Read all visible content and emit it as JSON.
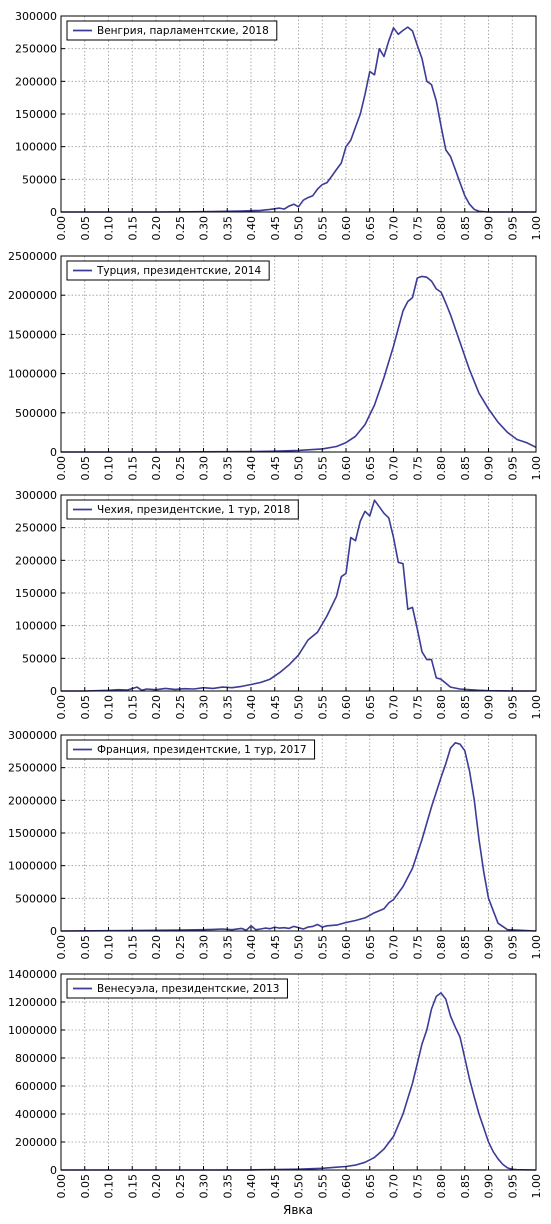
{
  "figure": {
    "xlabel": "Явка",
    "line_color": "#3b3b98"
  },
  "chart_data": [
    {
      "type": "line",
      "legend": "Венгрия, парламентские, 2018",
      "xlim": [
        0,
        1
      ],
      "ylim": [
        0,
        300000
      ],
      "x_ticks": [
        "0.00",
        "0.05",
        "0.10",
        "0.15",
        "0.20",
        "0.25",
        "0.30",
        "0.35",
        "0.40",
        "0.45",
        "0.50",
        "0.55",
        "0.60",
        "0.65",
        "0.70",
        "0.75",
        "0.80",
        "0.85",
        "0.90",
        "0.95",
        "1.00"
      ],
      "y_ticks": [
        "0",
        "50000",
        "100000",
        "150000",
        "200000",
        "250000",
        "300000"
      ],
      "grid": true,
      "legend_position": "top-left",
      "x": [
        0,
        0.1,
        0.2,
        0.3,
        0.35,
        0.38,
        0.4,
        0.42,
        0.44,
        0.46,
        0.47,
        0.48,
        0.49,
        0.5,
        0.51,
        0.52,
        0.53,
        0.54,
        0.55,
        0.56,
        0.57,
        0.58,
        0.59,
        0.6,
        0.61,
        0.62,
        0.63,
        0.64,
        0.65,
        0.66,
        0.67,
        0.68,
        0.69,
        0.7,
        0.71,
        0.72,
        0.73,
        0.74,
        0.75,
        0.76,
        0.77,
        0.78,
        0.79,
        0.8,
        0.81,
        0.82,
        0.83,
        0.84,
        0.85,
        0.86,
        0.87,
        0.88,
        0.9,
        1.0
      ],
      "y": [
        0,
        0,
        0,
        500,
        1000,
        1500,
        2000,
        2500,
        4000,
        6000,
        4500,
        9000,
        12000,
        8000,
        18000,
        22000,
        25000,
        35000,
        42000,
        45000,
        55000,
        65000,
        75000,
        100000,
        110000,
        130000,
        150000,
        180000,
        215000,
        210000,
        250000,
        238000,
        262000,
        282000,
        272000,
        278000,
        283000,
        277000,
        255000,
        235000,
        200000,
        195000,
        170000,
        132000,
        95000,
        85000,
        65000,
        45000,
        25000,
        12000,
        4000,
        1000,
        0,
        0
      ]
    },
    {
      "type": "line",
      "legend": "Турция, президентские, 2014",
      "xlim": [
        0,
        1
      ],
      "ylim": [
        0,
        2500000
      ],
      "x_ticks": [
        "0.00",
        "0.05",
        "0.10",
        "0.15",
        "0.20",
        "0.25",
        "0.30",
        "0.35",
        "0.40",
        "0.45",
        "0.50",
        "0.55",
        "0.60",
        "0.65",
        "0.70",
        "0.75",
        "0.80",
        "0.85",
        "0.90",
        "0.95",
        "1.00"
      ],
      "y_ticks": [
        "0",
        "500000",
        "1000000",
        "1500000",
        "2000000",
        "2500000"
      ],
      "grid": true,
      "legend_position": "top-left",
      "x": [
        0,
        0.2,
        0.4,
        0.45,
        0.5,
        0.55,
        0.58,
        0.6,
        0.62,
        0.64,
        0.66,
        0.68,
        0.7,
        0.72,
        0.73,
        0.74,
        0.75,
        0.76,
        0.77,
        0.78,
        0.79,
        0.8,
        0.81,
        0.82,
        0.84,
        0.86,
        0.88,
        0.9,
        0.92,
        0.94,
        0.96,
        0.98,
        1.0
      ],
      "y": [
        0,
        0,
        5000,
        10000,
        20000,
        40000,
        70000,
        120000,
        200000,
        350000,
        600000,
        950000,
        1350000,
        1800000,
        1920000,
        1970000,
        2220000,
        2240000,
        2230000,
        2180000,
        2080000,
        2040000,
        1900000,
        1750000,
        1400000,
        1050000,
        750000,
        550000,
        380000,
        250000,
        160000,
        120000,
        60000
      ]
    },
    {
      "type": "line",
      "legend": "Чехия, президентские, 1 тур, 2018",
      "xlim": [
        0,
        1
      ],
      "ylim": [
        0,
        300000
      ],
      "x_ticks": [
        "0.00",
        "0.05",
        "0.10",
        "0.15",
        "0.20",
        "0.25",
        "0.30",
        "0.35",
        "0.40",
        "0.45",
        "0.50",
        "0.55",
        "0.60",
        "0.65",
        "0.70",
        "0.75",
        "0.80",
        "0.85",
        "0.90",
        "0.95",
        "1.00"
      ],
      "y_ticks": [
        "0",
        "50000",
        "100000",
        "150000",
        "200000",
        "250000",
        "300000"
      ],
      "grid": true,
      "legend_position": "top-left",
      "x": [
        0,
        0.05,
        0.1,
        0.12,
        0.14,
        0.16,
        0.17,
        0.18,
        0.2,
        0.22,
        0.24,
        0.26,
        0.28,
        0.3,
        0.32,
        0.34,
        0.36,
        0.38,
        0.4,
        0.42,
        0.44,
        0.46,
        0.48,
        0.5,
        0.52,
        0.54,
        0.56,
        0.58,
        0.59,
        0.6,
        0.61,
        0.62,
        0.63,
        0.64,
        0.65,
        0.66,
        0.67,
        0.68,
        0.69,
        0.7,
        0.71,
        0.72,
        0.73,
        0.74,
        0.75,
        0.76,
        0.77,
        0.78,
        0.79,
        0.8,
        0.82,
        0.84,
        0.86,
        0.88,
        0.9,
        0.95,
        1.0
      ],
      "y": [
        0,
        0,
        1000,
        2000,
        1500,
        6000,
        1000,
        3000,
        2000,
        4000,
        2500,
        3500,
        3000,
        5000,
        4000,
        6000,
        5000,
        7000,
        10000,
        13000,
        18000,
        28000,
        40000,
        55000,
        78000,
        90000,
        115000,
        145000,
        175000,
        180000,
        235000,
        230000,
        260000,
        275000,
        268000,
        292000,
        282000,
        272000,
        265000,
        235000,
        197000,
        195000,
        125000,
        128000,
        95000,
        60000,
        48000,
        48000,
        20000,
        18000,
        6000,
        3000,
        2000,
        1000,
        500,
        0,
        0
      ]
    },
    {
      "type": "line",
      "legend": "Франция, президентские, 1 тур, 2017",
      "xlim": [
        0,
        1
      ],
      "ylim": [
        0,
        3000000
      ],
      "x_ticks": [
        "0.00",
        "0.05",
        "0.10",
        "0.15",
        "0.20",
        "0.25",
        "0.30",
        "0.35",
        "0.40",
        "0.45",
        "0.50",
        "0.55",
        "0.60",
        "0.65",
        "0.70",
        "0.75",
        "0.80",
        "0.85",
        "0.90",
        "0.95",
        "1.00"
      ],
      "y_ticks": [
        "0",
        "500000",
        "1000000",
        "1500000",
        "2000000",
        "2500000",
        "3000000"
      ],
      "grid": true,
      "legend_position": "top-left",
      "x": [
        0,
        0.1,
        0.2,
        0.25,
        0.3,
        0.32,
        0.34,
        0.36,
        0.38,
        0.39,
        0.4,
        0.41,
        0.42,
        0.43,
        0.44,
        0.45,
        0.46,
        0.47,
        0.48,
        0.49,
        0.5,
        0.51,
        0.52,
        0.53,
        0.54,
        0.55,
        0.56,
        0.58,
        0.6,
        0.62,
        0.64,
        0.66,
        0.68,
        0.69,
        0.7,
        0.72,
        0.74,
        0.76,
        0.78,
        0.8,
        0.81,
        0.82,
        0.83,
        0.84,
        0.85,
        0.86,
        0.87,
        0.88,
        0.89,
        0.9,
        0.92,
        0.94,
        1.0
      ],
      "y": [
        0,
        5000,
        10000,
        15000,
        20000,
        25000,
        30000,
        20000,
        40000,
        10000,
        80000,
        20000,
        30000,
        45000,
        35000,
        60000,
        45000,
        50000,
        40000,
        70000,
        50000,
        30000,
        60000,
        70000,
        100000,
        60000,
        80000,
        90000,
        130000,
        160000,
        200000,
        280000,
        340000,
        430000,
        480000,
        680000,
        960000,
        1400000,
        1900000,
        2350000,
        2560000,
        2800000,
        2880000,
        2860000,
        2760000,
        2450000,
        2000000,
        1400000,
        900000,
        500000,
        120000,
        20000,
        0
      ]
    },
    {
      "type": "line",
      "legend": "Венесуэла, президентские, 2013",
      "xlim": [
        0,
        1
      ],
      "ylim": [
        0,
        1400000
      ],
      "x_ticks": [
        "0.00",
        "0.05",
        "0.10",
        "0.15",
        "0.20",
        "0.25",
        "0.30",
        "0.35",
        "0.40",
        "0.45",
        "0.50",
        "0.55",
        "0.60",
        "0.65",
        "0.70",
        "0.75",
        "0.80",
        "0.85",
        "0.90",
        "0.95",
        "1.00"
      ],
      "y_ticks": [
        "0",
        "200000",
        "400000",
        "600000",
        "800000",
        "1000000",
        "1200000",
        "1400000"
      ],
      "grid": true,
      "legend_position": "top-left",
      "x": [
        0,
        0.3,
        0.4,
        0.45,
        0.5,
        0.55,
        0.58,
        0.6,
        0.62,
        0.64,
        0.66,
        0.68,
        0.7,
        0.72,
        0.74,
        0.75,
        0.76,
        0.77,
        0.78,
        0.79,
        0.8,
        0.81,
        0.82,
        0.83,
        0.84,
        0.85,
        0.86,
        0.87,
        0.88,
        0.89,
        0.9,
        0.91,
        0.92,
        0.93,
        0.94,
        0.95,
        0.96,
        1.0
      ],
      "y": [
        0,
        0,
        1000,
        3000,
        6000,
        12000,
        20000,
        25000,
        35000,
        55000,
        90000,
        150000,
        240000,
        400000,
        620000,
        760000,
        900000,
        1000000,
        1150000,
        1240000,
        1265000,
        1220000,
        1100000,
        1020000,
        950000,
        800000,
        650000,
        520000,
        400000,
        300000,
        200000,
        130000,
        80000,
        40000,
        15000,
        5000,
        2000,
        0
      ]
    }
  ]
}
